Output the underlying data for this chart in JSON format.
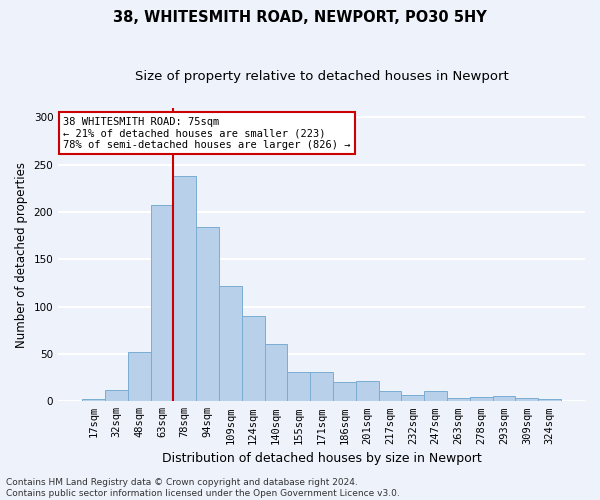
{
  "title_line1": "38, WHITESMITH ROAD, NEWPORT, PO30 5HY",
  "title_line2": "Size of property relative to detached houses in Newport",
  "xlabel": "Distribution of detached houses by size in Newport",
  "ylabel": "Number of detached properties",
  "categories": [
    "17sqm",
    "32sqm",
    "48sqm",
    "63sqm",
    "78sqm",
    "94sqm",
    "109sqm",
    "124sqm",
    "140sqm",
    "155sqm",
    "171sqm",
    "186sqm",
    "201sqm",
    "217sqm",
    "232sqm",
    "247sqm",
    "263sqm",
    "278sqm",
    "293sqm",
    "309sqm",
    "324sqm"
  ],
  "values": [
    2,
    12,
    52,
    207,
    238,
    184,
    122,
    90,
    60,
    31,
    31,
    20,
    21,
    11,
    7,
    11,
    3,
    5,
    6,
    3,
    2
  ],
  "bar_color": "#b8d0ea",
  "bar_edge_color": "#7aadd4",
  "vline_color": "#cc0000",
  "vline_x_index": 3.5,
  "annotation_text": "38 WHITESMITH ROAD: 75sqm\n← 21% of detached houses are smaller (223)\n78% of semi-detached houses are larger (826) →",
  "annotation_box_color": "#ffffff",
  "annotation_edge_color": "#cc0000",
  "ylim": [
    0,
    310
  ],
  "yticks": [
    0,
    50,
    100,
    150,
    200,
    250,
    300
  ],
  "background_color": "#eef2fb",
  "grid_color": "#ffffff",
  "footer_line1": "Contains HM Land Registry data © Crown copyright and database right 2024.",
  "footer_line2": "Contains public sector information licensed under the Open Government Licence v3.0.",
  "title_fontsize": 10.5,
  "subtitle_fontsize": 9.5,
  "ylabel_fontsize": 8.5,
  "xlabel_fontsize": 9,
  "tick_fontsize": 7.5,
  "annotation_fontsize": 7.5,
  "footer_fontsize": 6.5
}
